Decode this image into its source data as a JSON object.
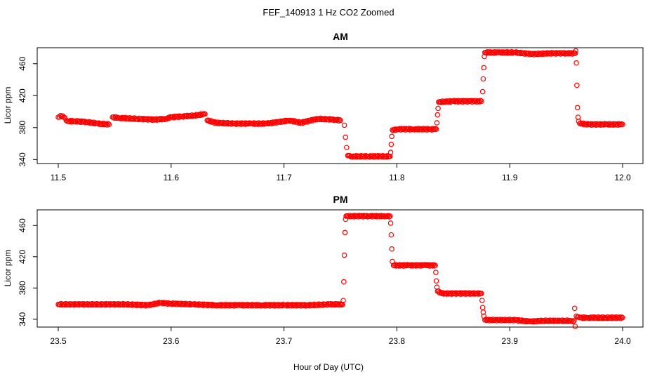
{
  "figure": {
    "title": "FEF_140913  1 Hz CO2 Zoomed",
    "xlabel": "Hour of Day (UTC)"
  },
  "colors": {
    "points": "#ff0000",
    "axes": "#000000"
  },
  "chart_data": [
    {
      "type": "scatter",
      "title": "AM",
      "xlabel": "",
      "ylabel": "Licor ppm",
      "xlim": [
        11.5,
        12.0
      ],
      "ylim": [
        335,
        480
      ],
      "xticks": [
        11.5,
        11.6,
        11.7,
        11.8,
        11.9,
        12.0
      ],
      "xtick_labels": [
        "11.5",
        "11.6",
        "11.7",
        "11.8",
        "11.9",
        "12.0"
      ],
      "yticks": [
        340,
        380,
        420,
        460
      ],
      "ytick_labels": [
        "340",
        "380",
        "420",
        "460"
      ],
      "marker": "open-circle",
      "series": [
        {
          "x": [
            11.5,
            11.502,
            11.505,
            11.508,
            11.515,
            11.525,
            11.535,
            11.545,
            11.548,
            11.555,
            11.57,
            11.585,
            11.595,
            11.6,
            11.61,
            11.62,
            11.63,
            11.632,
            11.64,
            11.655,
            11.67,
            11.685,
            11.695,
            11.705,
            11.715,
            11.73,
            11.745,
            11.75,
            11.7535,
            11.7545,
            11.7555,
            11.7565,
            11.76,
            11.775,
            11.79,
            11.794,
            11.7945,
            11.795,
            11.7955,
            11.796,
            11.8,
            11.815,
            11.83,
            11.835,
            11.8355,
            11.836,
            11.8365,
            11.837,
            11.85,
            11.865,
            11.875,
            11.876,
            11.8765,
            11.877,
            11.8775,
            11.878,
            11.89,
            11.905,
            11.92,
            11.935,
            11.95,
            11.958,
            11.9585,
            11.959,
            11.9595,
            11.96,
            11.9605,
            11.961,
            11.962,
            11.97,
            11.985,
            12.0
          ],
          "y": [
            393,
            395,
            393,
            388,
            388,
            387,
            385,
            384,
            393,
            392,
            391,
            390,
            391,
            393,
            394,
            395,
            397,
            389,
            386,
            385,
            385,
            385,
            387,
            389,
            386,
            391,
            390,
            389,
            383,
            368,
            355,
            345,
            344,
            344,
            344,
            344,
            349,
            359,
            369,
            377,
            378,
            378,
            378,
            378,
            386,
            396,
            404,
            412,
            413,
            413,
            413,
            425,
            441,
            455,
            469,
            474,
            474,
            474,
            472,
            473,
            473,
            473,
            476,
            461,
            433,
            405,
            393,
            388,
            385,
            384,
            384,
            384
          ]
        }
      ]
    },
    {
      "type": "scatter",
      "title": "PM",
      "xlabel": "",
      "ylabel": "Licor ppm",
      "xlim": [
        23.5,
        24.0
      ],
      "ylim": [
        330,
        480
      ],
      "xticks": [
        23.5,
        23.6,
        23.7,
        23.8,
        23.9,
        24.0
      ],
      "xtick_labels": [
        "23.5",
        "23.6",
        "23.7",
        "23.8",
        "23.9",
        "24.0"
      ],
      "yticks": [
        340,
        380,
        420,
        460
      ],
      "ytick_labels": [
        "340",
        "380",
        "420",
        "460"
      ],
      "marker": "open-circle",
      "series": [
        {
          "x": [
            23.5,
            23.52,
            23.54,
            23.56,
            23.58,
            23.59,
            23.6,
            23.62,
            23.64,
            23.66,
            23.68,
            23.7,
            23.72,
            23.74,
            23.752,
            23.7525,
            23.753,
            23.7535,
            23.754,
            23.7545,
            23.755,
            23.76,
            23.775,
            23.79,
            23.794,
            23.7945,
            23.795,
            23.7955,
            23.796,
            23.797,
            23.81,
            23.825,
            23.834,
            23.8345,
            23.835,
            23.8355,
            23.836,
            23.84,
            23.855,
            23.87,
            23.875,
            23.8755,
            23.876,
            23.8765,
            23.877,
            23.878,
            23.89,
            23.905,
            23.918,
            23.93,
            23.945,
            23.955,
            23.957,
            23.9575,
            23.958,
            23.959,
            23.962,
            23.97,
            23.985,
            24.0
          ],
          "y": [
            359,
            359,
            359,
            359,
            358,
            361,
            360,
            359,
            358,
            358,
            358,
            358,
            358,
            359,
            359,
            364,
            388,
            422,
            451,
            468,
            472,
            472,
            472,
            472,
            472,
            463,
            448,
            430,
            414,
            409,
            409,
            409,
            409,
            400,
            389,
            381,
            376,
            373,
            373,
            373,
            373,
            364,
            355,
            349,
            344,
            339,
            339,
            339,
            337,
            338,
            338,
            338,
            338,
            354,
            331,
            344,
            342,
            342,
            342,
            342
          ]
        }
      ]
    }
  ]
}
